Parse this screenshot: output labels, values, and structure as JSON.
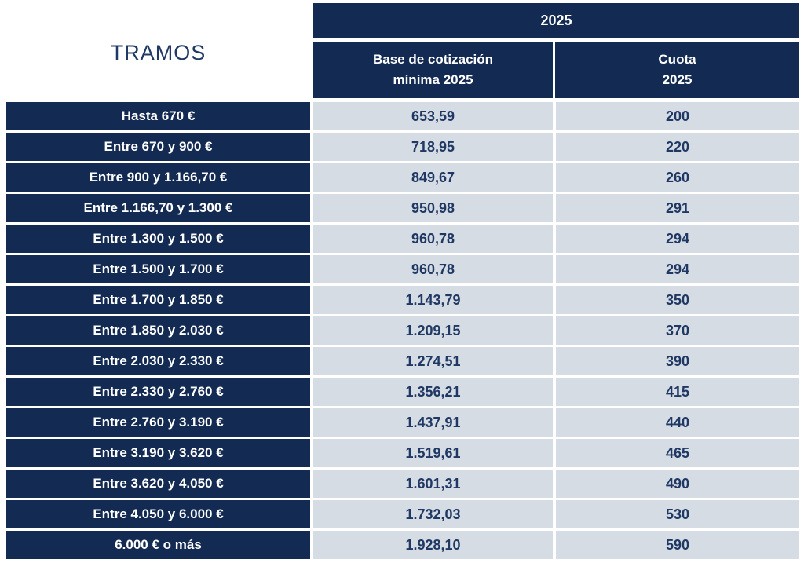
{
  "title": "TRAMOS",
  "header": {
    "year": "2025",
    "base_line1": "Base de cotización",
    "base_line2": "mínima 2025",
    "cuota_line1": "Cuota",
    "cuota_line2": "2025"
  },
  "colors": {
    "navy": "#132a52",
    "light_cell": "#d6dce4",
    "value_text": "#1f3864",
    "header_text": "#ffffff",
    "background": "#ffffff"
  },
  "chart_data": {
    "type": "table",
    "title": "TRAMOS — 2025",
    "columns": [
      "TRAMOS",
      "Base de cotización mínima 2025",
      "Cuota 2025"
    ],
    "rows": [
      {
        "tramo": "Hasta 670 €",
        "base": "653,59",
        "cuota": "200"
      },
      {
        "tramo": "Entre 670 y 900 €",
        "base": "718,95",
        "cuota": "220"
      },
      {
        "tramo": "Entre 900 y 1.166,70 €",
        "base": "849,67",
        "cuota": "260"
      },
      {
        "tramo": "Entre 1.166,70 y 1.300 €",
        "base": "950,98",
        "cuota": "291"
      },
      {
        "tramo": "Entre 1.300 y 1.500 €",
        "base": "960,78",
        "cuota": "294"
      },
      {
        "tramo": "Entre 1.500 y 1.700 €",
        "base": "960,78",
        "cuota": "294"
      },
      {
        "tramo": "Entre 1.700 y 1.850 €",
        "base": "1.143,79",
        "cuota": "350"
      },
      {
        "tramo": "Entre 1.850 y 2.030 €",
        "base": "1.209,15",
        "cuota": "370"
      },
      {
        "tramo": "Entre 2.030 y 2.330 €",
        "base": "1.274,51",
        "cuota": "390"
      },
      {
        "tramo": "Entre 2.330 y 2.760 €",
        "base": "1.356,21",
        "cuota": "415"
      },
      {
        "tramo": "Entre 2.760 y 3.190 €",
        "base": "1.437,91",
        "cuota": "440"
      },
      {
        "tramo": "Entre 3.190 y 3.620 €",
        "base": "1.519,61",
        "cuota": "465"
      },
      {
        "tramo": "Entre 3.620 y 4.050 €",
        "base": "1.601,31",
        "cuota": "490"
      },
      {
        "tramo": "Entre 4.050 y 6.000 €",
        "base": "1.732,03",
        "cuota": "530"
      },
      {
        "tramo": "6.000 € o más",
        "base": "1.928,10",
        "cuota": "590"
      }
    ]
  }
}
